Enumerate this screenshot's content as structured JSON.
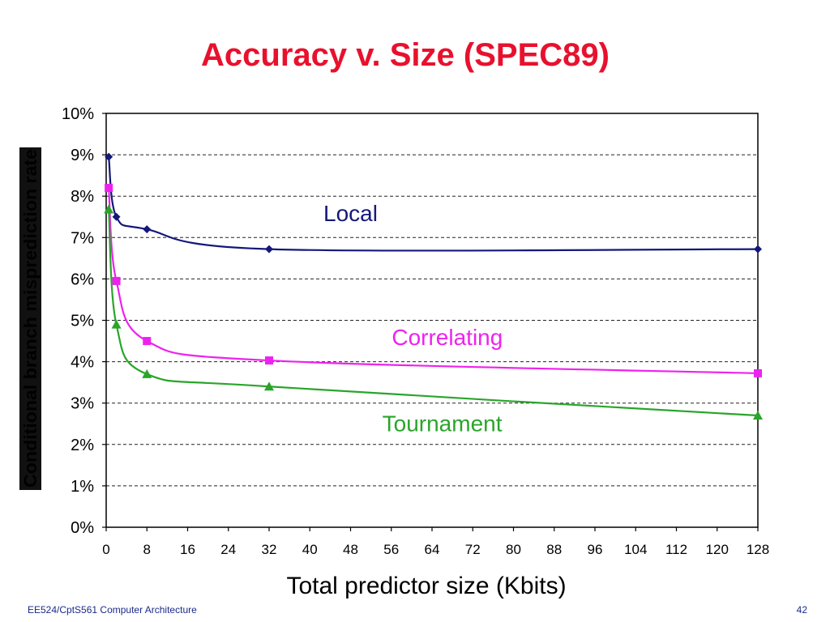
{
  "slide": {
    "title": "Accuracy v. Size (SPEC89)",
    "footer_left": "EE524/CptS561 Computer Architecture",
    "page_number": "42"
  },
  "colors": {
    "title": "#e8112d",
    "local": "#14187a",
    "correlating": "#ee22ee",
    "tournament": "#2aa52a"
  },
  "chart_data": {
    "type": "line",
    "title": "",
    "xlabel": "Total predictor size (Kbits)",
    "ylabel": "Conditional branch misprediction rate",
    "xlim": [
      0,
      128
    ],
    "ylim": [
      0,
      10
    ],
    "x_ticks": [
      "0",
      "8",
      "16",
      "24",
      "32",
      "40",
      "48",
      "56",
      "64",
      "72",
      "80",
      "88",
      "96",
      "104",
      "112",
      "120",
      "128"
    ],
    "y_ticks": [
      "0%",
      "1%",
      "2%",
      "3%",
      "4%",
      "5%",
      "6%",
      "7%",
      "8%",
      "9%",
      "10%"
    ],
    "grid": "horizontal dashed",
    "series": [
      {
        "name": "Local",
        "marker": "diamond",
        "color_key": "local",
        "label_at": [
          48,
          7.4
        ],
        "points": [
          [
            0.5,
            8.95
          ],
          [
            2,
            7.5
          ],
          [
            8,
            7.2
          ],
          [
            32,
            6.72
          ],
          [
            128,
            6.72
          ]
        ]
      },
      {
        "name": "Correlating",
        "marker": "square",
        "color_key": "correlating",
        "label_at": [
          67,
          4.4
        ],
        "points": [
          [
            0.5,
            8.2
          ],
          [
            2,
            5.95
          ],
          [
            8,
            4.5
          ],
          [
            32,
            4.03
          ],
          [
            128,
            3.72
          ]
        ]
      },
      {
        "name": "Tournament",
        "marker": "triangle",
        "color_key": "tournament",
        "label_at": [
          66,
          2.32
        ],
        "points": [
          [
            0.5,
            7.68
          ],
          [
            2,
            4.9
          ],
          [
            8,
            3.7
          ],
          [
            32,
            3.4
          ],
          [
            128,
            2.7
          ]
        ]
      }
    ]
  }
}
